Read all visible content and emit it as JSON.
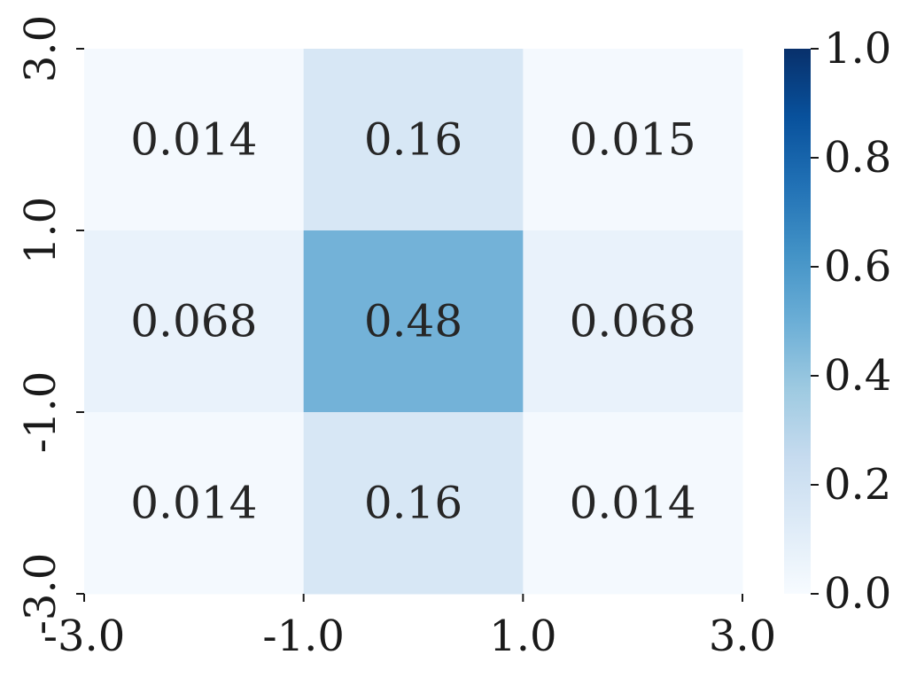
{
  "chart_data": {
    "type": "heatmap",
    "title": "",
    "xlabel": "",
    "ylabel": "",
    "x_tick_labels": [
      "-3.0",
      "-1.0",
      "1.0",
      "3.0"
    ],
    "y_tick_labels": [
      "3.0",
      "1.0",
      "-1.0",
      "-3.0"
    ],
    "values": [
      [
        0.014,
        0.16,
        0.015
      ],
      [
        0.068,
        0.48,
        0.068
      ],
      [
        0.014,
        0.16,
        0.014
      ]
    ],
    "value_labels": [
      [
        "0.014",
        "0.16",
        "0.015"
      ],
      [
        "0.068",
        "0.48",
        "0.068"
      ],
      [
        "0.014",
        "0.16",
        "0.014"
      ]
    ],
    "colorbar": {
      "range": [
        0.0,
        1.0
      ],
      "tick_values": [
        0.0,
        0.2,
        0.4,
        0.6,
        0.8,
        1.0
      ],
      "tick_labels": [
        "0.0",
        "0.2",
        "0.4",
        "0.6",
        "0.8",
        "1.0"
      ],
      "colormap": "Blues"
    },
    "grid": false
  }
}
